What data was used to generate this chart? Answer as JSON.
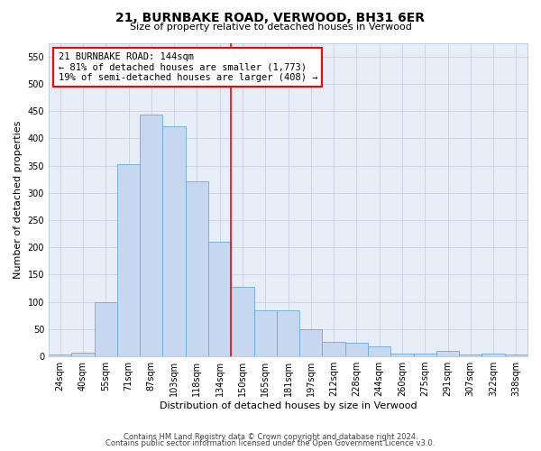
{
  "title": "21, BURNBAKE ROAD, VERWOOD, BH31 6ER",
  "subtitle": "Size of property relative to detached houses in Verwood",
  "xlabel": "Distribution of detached houses by size in Verwood",
  "ylabel": "Number of detached properties",
  "bar_labels": [
    "24sqm",
    "40sqm",
    "55sqm",
    "71sqm",
    "87sqm",
    "103sqm",
    "118sqm",
    "134sqm",
    "150sqm",
    "165sqm",
    "181sqm",
    "197sqm",
    "212sqm",
    "228sqm",
    "244sqm",
    "260sqm",
    "275sqm",
    "291sqm",
    "307sqm",
    "322sqm",
    "338sqm"
  ],
  "bar_heights": [
    4,
    7,
    100,
    353,
    444,
    422,
    321,
    210,
    128,
    85,
    85,
    49,
    27,
    25,
    18,
    5,
    5,
    10,
    4,
    5,
    3
  ],
  "bar_color": "#c5d8f0",
  "bar_edge_color": "#6aabd4",
  "annotation_text": "21 BURNBAKE ROAD: 144sqm\n← 81% of detached houses are smaller (1,773)\n19% of semi-detached houses are larger (408) →",
  "footnote1": "Contains HM Land Registry data © Crown copyright and database right 2024.",
  "footnote2": "Contains public sector information licensed under the Open Government Licence v3.0.",
  "background_color": "#ffffff",
  "plot_bg_color": "#e8eef8",
  "grid_color": "#c0cce0",
  "ylim": [
    0,
    575
  ],
  "yticks": [
    0,
    50,
    100,
    150,
    200,
    250,
    300,
    350,
    400,
    450,
    500,
    550
  ],
  "red_line_x": 7.5,
  "title_fontsize": 10,
  "subtitle_fontsize": 8,
  "ylabel_fontsize": 8,
  "xlabel_fontsize": 8,
  "tick_fontsize": 7,
  "annot_fontsize": 7.5,
  "footnote_fontsize": 6
}
